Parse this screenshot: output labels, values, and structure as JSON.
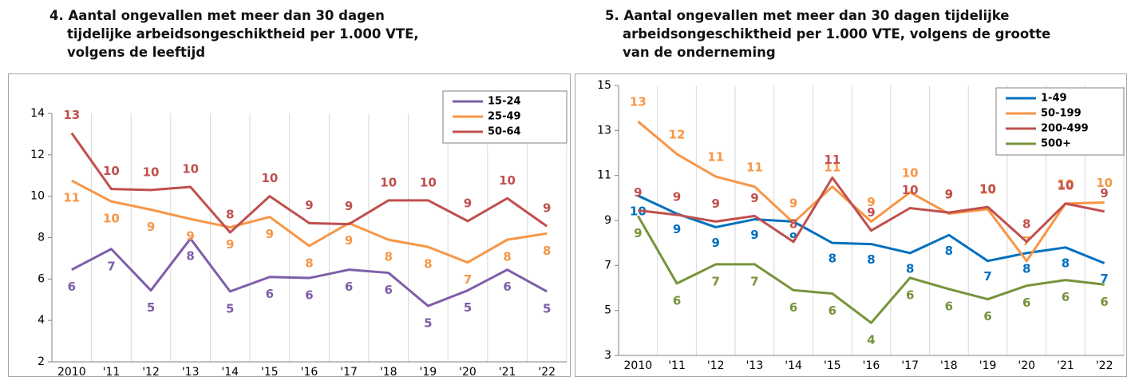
{
  "chart_data": [
    {
      "type": "line",
      "title": "4. Aantal ongevallen met meer dan 30 dagen tijdelijke arbeidsongeschiktheid per 1.000 VTE, volgens de leeftijd",
      "categories": [
        "2010",
        "'11",
        "'12",
        "'13",
        "'14",
        "'15",
        "'16",
        "'17",
        "'18",
        "'19",
        "'20",
        "'21",
        "'22"
      ],
      "ylim": [
        2,
        14
      ],
      "yticks": [
        2,
        4,
        6,
        8,
        10,
        12,
        14
      ],
      "legend": "top-right",
      "series": [
        {
          "name": "15-24",
          "color": "#7e5ea8",
          "values": [
            6.45,
            7.45,
            5.45,
            7.95,
            5.4,
            6.1,
            6.05,
            6.45,
            6.3,
            4.7,
            5.45,
            6.45,
            5.4
          ],
          "value_labels": [
            "6",
            "7",
            "5",
            "8",
            "5",
            "6",
            "6",
            "6",
            "6",
            "5",
            "5",
            "6",
            "5"
          ]
        },
        {
          "name": "25-49",
          "color": "#f79646",
          "values": [
            10.75,
            9.75,
            9.35,
            8.9,
            8.5,
            9.0,
            7.6,
            8.7,
            7.9,
            7.55,
            6.8,
            7.9,
            8.2
          ],
          "value_labels": [
            "11",
            "10",
            "9",
            "9",
            "9",
            "9",
            "8",
            "9",
            "8",
            "8",
            "7",
            "8",
            "8"
          ]
        },
        {
          "name": "50-64",
          "color": "#c0504d",
          "values": [
            13.05,
            10.35,
            10.3,
            10.45,
            8.25,
            10.0,
            8.7,
            8.65,
            9.8,
            9.8,
            8.8,
            9.9,
            8.55
          ],
          "value_labels": [
            "13",
            "10",
            "10",
            "10",
            "8",
            "10",
            "9",
            "9",
            "10",
            "10",
            "9",
            "10",
            "9"
          ]
        }
      ]
    },
    {
      "type": "line",
      "title": "5. Aantal ongevallen met meer dan 30 dagen tijdelijke arbeidsongeschiktheid per 1.000 VTE, volgens de grootte van de onderneming",
      "categories": [
        "2010",
        "'11",
        "'12",
        "'13",
        "'14",
        "'15",
        "'16",
        "'17",
        "'18",
        "'19",
        "'20",
        "'21",
        "'22"
      ],
      "ylim": [
        3,
        15
      ],
      "yticks": [
        3,
        5,
        7,
        9,
        11,
        13,
        15
      ],
      "legend": "top-right",
      "series": [
        {
          "name": "1-49",
          "color": "#0070c0",
          "values": [
            10.1,
            9.3,
            8.7,
            9.05,
            8.95,
            8.0,
            7.95,
            7.55,
            8.35,
            7.2,
            7.55,
            7.8,
            7.1
          ],
          "value_labels": [
            "10",
            "9",
            "9",
            "9",
            "9",
            "8",
            "8",
            "8",
            "8",
            "7",
            "8",
            "8",
            "7"
          ]
        },
        {
          "name": "50-199",
          "color": "#f79646",
          "values": [
            13.4,
            11.95,
            10.95,
            10.5,
            8.9,
            10.5,
            8.95,
            10.25,
            9.3,
            9.5,
            7.2,
            9.75,
            9.8
          ],
          "value_labels": [
            "13",
            "12",
            "11",
            "11",
            "9",
            "11",
            "9",
            "10",
            "9",
            "10",
            "7",
            "10",
            "10"
          ]
        },
        {
          "name": "200-499",
          "color": "#c0504d",
          "values": [
            9.45,
            9.25,
            8.95,
            9.2,
            8.05,
            10.9,
            8.55,
            9.55,
            9.35,
            9.6,
            8.05,
            9.75,
            9.4
          ],
          "value_labels": [
            "9",
            "9",
            "9",
            "9",
            "8",
            "11",
            "9",
            "10",
            "9",
            "10",
            "8",
            "10",
            "9"
          ]
        },
        {
          "name": "500+",
          "color": "#77933c",
          "values": [
            9.2,
            6.2,
            7.05,
            7.05,
            5.9,
            5.75,
            4.45,
            6.45,
            5.95,
            5.5,
            6.1,
            6.35,
            6.15
          ],
          "value_labels": [
            "9",
            "6",
            "7",
            "7",
            "6",
            "6",
            "4",
            "6",
            "6",
            "6",
            "6",
            "6",
            "6"
          ]
        }
      ]
    }
  ]
}
